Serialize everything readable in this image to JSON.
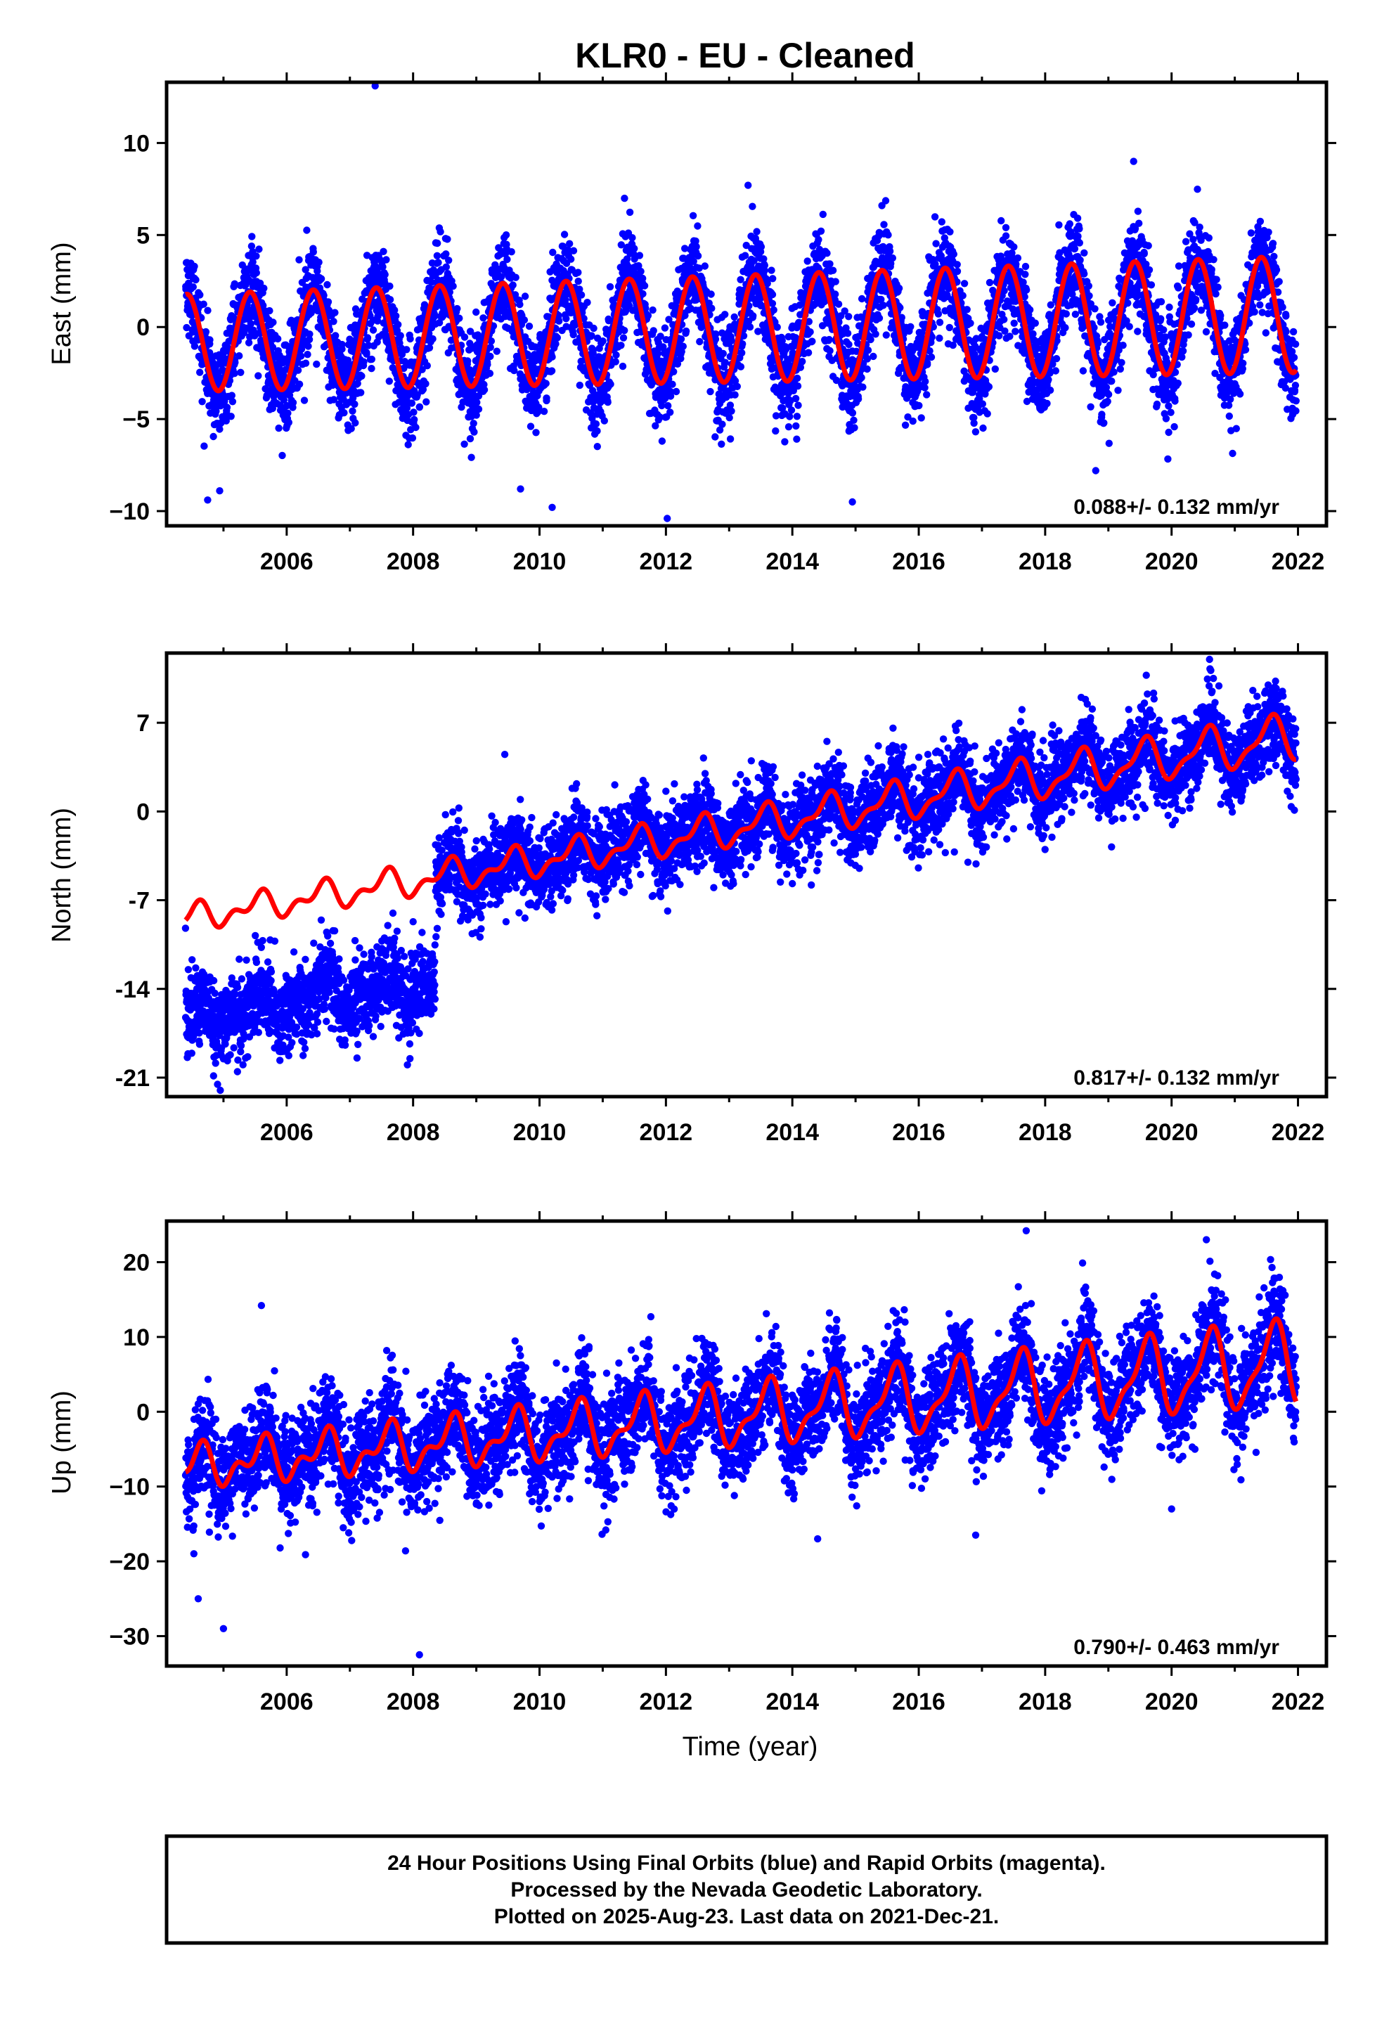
{
  "title": "KLR0  - EU - Cleaned",
  "colors": {
    "final_orbits": "#0000ff",
    "model": "#ff0000",
    "frame": "#000000"
  },
  "xaxis": {
    "ticks": [
      "2006",
      "2008",
      "2010",
      "2012",
      "2014",
      "2016",
      "2018",
      "2020",
      "2022"
    ],
    "label": "Time (year)"
  },
  "caption": {
    "line1": "24 Hour Positions Using Final Orbits (blue) and Rapid Orbits (magenta).",
    "line2": "Processed by the Nevada Geodetic Laboratory.",
    "line3": "Plotted on 2025-Aug-23. Last data on 2021-Dec-21."
  },
  "chart_data": [
    {
      "type": "scatter",
      "component": "east",
      "ylabel": "East (mm)",
      "rate_text": "0.088+/- 0.132 mm/yr",
      "xlim": [
        2004.1,
        2022.45
      ],
      "ylim": [
        -10.8,
        13.3
      ],
      "yticks": [
        "10",
        "5",
        "0",
        "−5",
        "−10"
      ],
      "ytick_values": [
        10,
        5,
        0,
        -5,
        -10
      ],
      "data_span": [
        2004.4,
        2021.97
      ],
      "model": {
        "velocity": 0.088,
        "offset_at_2013": -0.1,
        "annual_amp": 2.9,
        "annual_amp_trend": 0.03,
        "annual_phase_peak": 0.42,
        "semiannual_amp": 0.0,
        "steps": []
      },
      "scatter": {
        "points_per_year": 340,
        "noise_sigma": 1.3,
        "outliers": [
          [
            2007.4,
            13.1
          ],
          [
            2019.4,
            9.0
          ],
          [
            2004.75,
            -9.4
          ],
          [
            2009.7,
            -8.8
          ],
          [
            2010.2,
            -9.8
          ],
          [
            2012.02,
            -10.4
          ],
          [
            2014.95,
            -9.5
          ],
          [
            2013.3,
            7.7
          ],
          [
            2018.8,
            -7.8
          ]
        ]
      }
    },
    {
      "type": "scatter",
      "component": "north",
      "ylabel": "North (mm)",
      "rate_text": "0.817+/- 0.132 mm/yr",
      "xlim": [
        2004.1,
        2022.45
      ],
      "ylim": [
        -22.5,
        12.5
      ],
      "yticks": [
        "7",
        "0",
        "-7",
        "-14",
        "-21"
      ],
      "ytick_values": [
        7,
        0,
        -7,
        -14,
        -21
      ],
      "data_span": [
        2004.4,
        2021.97
      ],
      "model": {
        "velocity": 0.817,
        "offset_at_2013": -1.4,
        "annual_amp": 1.2,
        "annual_amp_trend": 0.05,
        "annual_phase_peak": 0.55,
        "semiannual_amp": 0.6,
        "steps": []
      },
      "scatter": {
        "points_per_year": 340,
        "noise_sigma": 1.6,
        "segments": [
          {
            "from": 2004.4,
            "to": 2008.35,
            "offset": -8.0
          }
        ],
        "outliers": [
          [
            2004.95,
            -22.0
          ],
          [
            2007.95,
            -19.5
          ],
          [
            2007.6,
            -9.0
          ],
          [
            2008.0,
            -8.7
          ],
          [
            2019.05,
            -2.8
          ],
          [
            2014.3,
            -5.8
          ],
          [
            2020.6,
            12.0
          ],
          [
            2009.45,
            4.5
          ]
        ]
      }
    },
    {
      "type": "scatter",
      "component": "up",
      "ylabel": "Up (mm)",
      "rate_text": "0.790+/- 0.463 mm/yr",
      "xlim": [
        2004.1,
        2022.45
      ],
      "ylim": [
        -34,
        25.5
      ],
      "yticks": [
        "20",
        "10",
        "0",
        "−10",
        "−20",
        "−30"
      ],
      "ytick_values": [
        20,
        10,
        0,
        -10,
        -20,
        -30
      ],
      "data_span": [
        2004.4,
        2021.97
      ],
      "model": {
        "velocity": 0.79,
        "offset_at_2013": -0.6,
        "annual_amp": 3.6,
        "annual_amp_trend": 0.18,
        "annual_phase_peak": 0.6,
        "semiannual_amp": 1.6,
        "steps": []
      },
      "scatter": {
        "points_per_year": 340,
        "noise_sigma": 3.5,
        "outliers": [
          [
            2008.1,
            -32.5
          ],
          [
            2005.0,
            -29.0
          ],
          [
            2017.7,
            24.2
          ],
          [
            2020.55,
            23.0
          ],
          [
            2005.6,
            14.2
          ],
          [
            2020.0,
            -13.0
          ],
          [
            2014.4,
            -17.0
          ],
          [
            2016.9,
            -16.5
          ],
          [
            2004.6,
            -25.0
          ]
        ]
      }
    }
  ]
}
